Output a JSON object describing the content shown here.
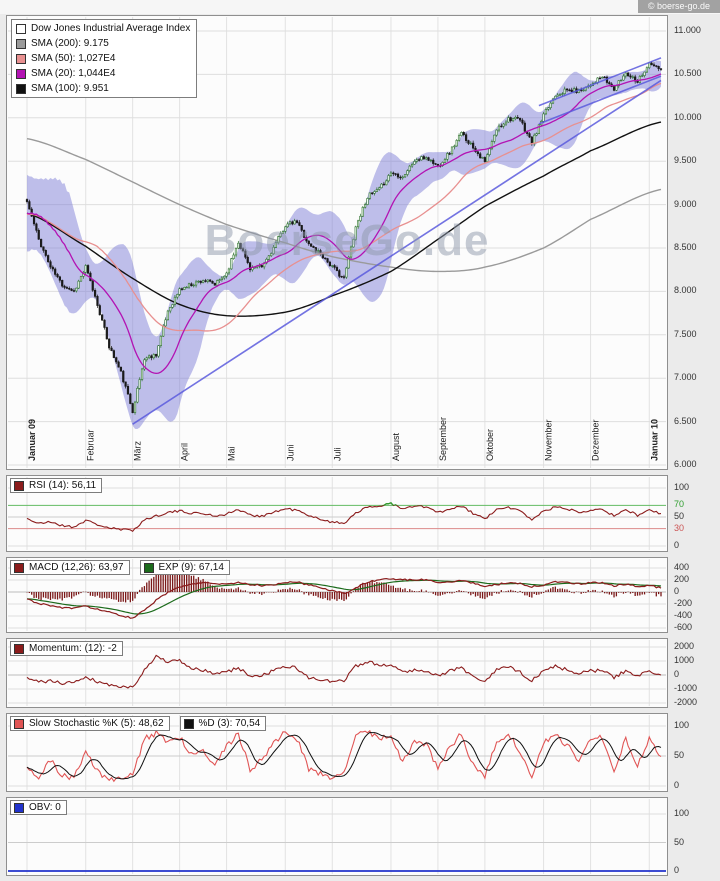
{
  "page": {
    "copyright": "© boerse-go.de",
    "watermark": "BoerseGo.de",
    "colors": {
      "page_bg": "#ebebeb",
      "panel_bg": "#fcfcfc",
      "panel_border": "#8f8f8f",
      "grid": "#dedede",
      "grid_month": "#e2e2e2",
      "axis_text": "#333333",
      "band": "#8080d8",
      "trend": "#5b5bdd",
      "candle_up": "#2a6e2a",
      "candle_down": "#1a1a1a",
      "sma20": "#b313b3",
      "sma50": "#e89090",
      "sma100": "#111111",
      "sma200": "#9a9a9a",
      "rsi": "#8b1c1c",
      "rsi_high": "#2f9e2f",
      "rsi_low": "#cc5555",
      "macd": "#8b1c1c",
      "macd_signal": "#1c6b1c",
      "macd_hist": "#7a1818",
      "momentum": "#8b1c1c",
      "stoch_k": "#e05555",
      "stoch_d": "#111111",
      "obv": "#2233cc"
    }
  },
  "chart_data": [
    {
      "id": "main",
      "type": "candlestick",
      "title": "Dow Jones Industrial Average Index",
      "legend": [
        {
          "label": "Dow Jones Industrial Average Index",
          "swatch": "#ffffff"
        },
        {
          "label": "SMA (200): 9.175",
          "swatch": "#9a9a9a"
        },
        {
          "label": "SMA (50): 1,027E4",
          "swatch": "#e89090"
        },
        {
          "label": "SMA (20): 1,044E4",
          "swatch": "#b313b3"
        },
        {
          "label": "SMA (100): 9.951",
          "swatch": "#111111"
        }
      ],
      "ylim": [
        6000,
        11000
      ],
      "y_ticks": [
        {
          "v": 11000,
          "t": "11.000"
        },
        {
          "v": 10500,
          "t": "10.500"
        },
        {
          "v": 10000,
          "t": "10.000"
        },
        {
          "v": 9500,
          "t": "9.500"
        },
        {
          "v": 9000,
          "t": "9.000"
        },
        {
          "v": 8500,
          "t": "8.500"
        },
        {
          "v": 8000,
          "t": "8.000"
        },
        {
          "v": 7500,
          "t": "7.500"
        },
        {
          "v": 7000,
          "t": "7.000"
        },
        {
          "v": 6500,
          "t": "6.500"
        },
        {
          "v": 6000,
          "t": "6.000"
        }
      ],
      "months": [
        {
          "label": "Januar 09",
          "week": 0,
          "bold": true
        },
        {
          "label": "Februar",
          "week": 5
        },
        {
          "label": "März",
          "week": 9
        },
        {
          "label": "April",
          "week": 13
        },
        {
          "label": "Mai",
          "week": 17
        },
        {
          "label": "Juni",
          "week": 22
        },
        {
          "label": "Juli",
          "week": 26
        },
        {
          "label": "August",
          "week": 31
        },
        {
          "label": "September",
          "week": 35
        },
        {
          "label": "Oktober",
          "week": 39
        },
        {
          "label": "November",
          "week": 44
        },
        {
          "label": "Dezember",
          "week": 48
        },
        {
          "label": "Januar 10",
          "week": 53,
          "bold": true
        }
      ],
      "weekly_close": [
        9034,
        8599,
        8281,
        8078,
        8001,
        8281,
        7850,
        7366,
        7063,
        6627,
        7224,
        7278,
        7776,
        8018,
        8083,
        8131,
        8076,
        8212,
        8575,
        8269,
        8277,
        8500,
        8763,
        8799,
        8540,
        8438,
        8281,
        8146,
        8744,
        9093,
        9172,
        9370,
        9321,
        9506,
        9544,
        9441,
        9605,
        9820,
        9665,
        9488,
        9865,
        9996,
        9972,
        9713,
        10023,
        10270,
        10318,
        10310,
        10389,
        10471,
        10329,
        10521,
        10428,
        10618,
        10560
      ],
      "sma100_monthly": [
        8900,
        8520,
        8150,
        7850,
        7720,
        7760,
        7950,
        8230,
        8600,
        8980,
        9330,
        9620,
        9951
      ],
      "sma200_monthly": [
        9760,
        9520,
        9260,
        9000,
        8770,
        8560,
        8400,
        8280,
        8230,
        8280,
        8500,
        8830,
        9175
      ],
      "bollinger_window": 20,
      "trendlines": [
        {
          "d1": 45,
          "v1": 6470,
          "d2": 270,
          "v2": 10430
        },
        {
          "d1": 218,
          "v1": 10140,
          "d2": 270,
          "v2": 10690
        },
        {
          "d1": 218,
          "v1": 9930,
          "d2": 270,
          "v2": 10480
        }
      ]
    },
    {
      "id": "rsi",
      "type": "line",
      "legend": [
        {
          "label": "RSI (14): 56,11",
          "swatch": "#8b1c1c"
        }
      ],
      "ylim": [
        0,
        100
      ],
      "levels": {
        "overbought": 70,
        "oversold": 30
      },
      "y_ticks": [
        {
          "v": 100,
          "t": "100"
        },
        {
          "v": 70,
          "t": "70",
          "c": "#2f9e2f",
          "line": "#63bb63"
        },
        {
          "v": 50,
          "t": "50",
          "line": "#cccccc"
        },
        {
          "v": 30,
          "t": "30",
          "c": "#cc5555",
          "line": "#dd8a8a"
        },
        {
          "v": 0,
          "t": "0"
        }
      ],
      "values": [
        48,
        38,
        42,
        35,
        33,
        44,
        37,
        31,
        28,
        27,
        45,
        52,
        58,
        60,
        57,
        56,
        52,
        55,
        63,
        53,
        52,
        58,
        64,
        62,
        51,
        47,
        41,
        39,
        58,
        66,
        69,
        74,
        63,
        69,
        67,
        58,
        62,
        69,
        56,
        47,
        62,
        67,
        60,
        46,
        60,
        67,
        64,
        59,
        62,
        65,
        51,
        63,
        53,
        62,
        56
      ]
    },
    {
      "id": "macd",
      "type": "macd",
      "legend": [
        {
          "label": "MACD (12,26): 63,97",
          "swatch": "#8b1c1c"
        },
        {
          "label": "EXP (9): 67,14",
          "swatch": "#1c6b1c"
        }
      ],
      "ylim": [
        -600,
        400
      ],
      "y_ticks": [
        {
          "v": 400,
          "t": "400"
        },
        {
          "v": 200,
          "t": "200"
        },
        {
          "v": 0,
          "t": "0",
          "line": "#bdbdbd"
        },
        {
          "v": -200,
          "t": "-200"
        },
        {
          "v": -400,
          "t": "-400"
        },
        {
          "v": -600,
          "t": "-600"
        }
      ],
      "values": [
        -120,
        -190,
        -230,
        -260,
        -275,
        -235,
        -285,
        -340,
        -395,
        -430,
        -310,
        -140,
        -10,
        80,
        130,
        155,
        140,
        135,
        155,
        125,
        110,
        125,
        155,
        165,
        120,
        75,
        25,
        -25,
        70,
        160,
        205,
        225,
        200,
        210,
        205,
        160,
        170,
        195,
        150,
        95,
        125,
        155,
        140,
        85,
        120,
        165,
        160,
        140,
        150,
        160,
        105,
        130,
        90,
        110,
        64
      ]
    },
    {
      "id": "momentum",
      "type": "line",
      "legend": [
        {
          "label": "Momentum: (12): -2",
          "swatch": "#8b1c1c"
        }
      ],
      "ylim": [
        -2000,
        2000
      ],
      "y_ticks": [
        {
          "v": 2000,
          "t": "2000"
        },
        {
          "v": 1000,
          "t": "1000"
        },
        {
          "v": 0,
          "t": "0",
          "line": "#bdbdbd"
        },
        {
          "v": -1000,
          "t": "-1000"
        },
        {
          "v": -2000,
          "t": "-2000"
        }
      ],
      "values": [
        -250,
        -500,
        -420,
        -610,
        -480,
        -120,
        -460,
        -710,
        -820,
        -900,
        420,
        1310,
        950,
        1000,
        480,
        320,
        110,
        210,
        520,
        -90,
        -30,
        300,
        620,
        480,
        -210,
        -320,
        -520,
        -380,
        620,
        910,
        780,
        690,
        210,
        390,
        310,
        -80,
        320,
        520,
        -120,
        -480,
        340,
        610,
        180,
        -420,
        310,
        620,
        380,
        90,
        320,
        300,
        -180,
        310,
        -90,
        280,
        -2
      ]
    },
    {
      "id": "stochastic",
      "type": "line",
      "legend": [
        {
          "label": "Slow Stochastic %K (5): 48,62",
          "swatch": "#e05555"
        },
        {
          "label": "%D (3): 70,54",
          "swatch": "#111111"
        }
      ],
      "ylim": [
        0,
        100
      ],
      "y_ticks": [
        {
          "v": 100,
          "t": "100"
        },
        {
          "v": 50,
          "t": "50",
          "line": "#cccccc"
        },
        {
          "v": 0,
          "t": "0"
        }
      ],
      "k_values": [
        35,
        14,
        42,
        18,
        13,
        58,
        24,
        10,
        14,
        18,
        78,
        88,
        74,
        82,
        54,
        62,
        34,
        66,
        86,
        28,
        44,
        72,
        90,
        78,
        28,
        22,
        13,
        20,
        84,
        92,
        80,
        86,
        38,
        76,
        70,
        28,
        66,
        86,
        34,
        14,
        76,
        86,
        58,
        16,
        72,
        86,
        68,
        44,
        76,
        82,
        24,
        80,
        34,
        80,
        49
      ],
      "d_smoothing": 7
    },
    {
      "id": "obv",
      "type": "line",
      "legend": [
        {
          "label": "OBV: 0",
          "swatch": "#2233cc"
        }
      ],
      "ylim": [
        0,
        100
      ],
      "y_ticks": [
        {
          "v": 100,
          "t": "100"
        },
        {
          "v": 50,
          "t": "50",
          "line": "#cccccc"
        },
        {
          "v": 0,
          "t": "0"
        }
      ],
      "value": 0
    }
  ]
}
